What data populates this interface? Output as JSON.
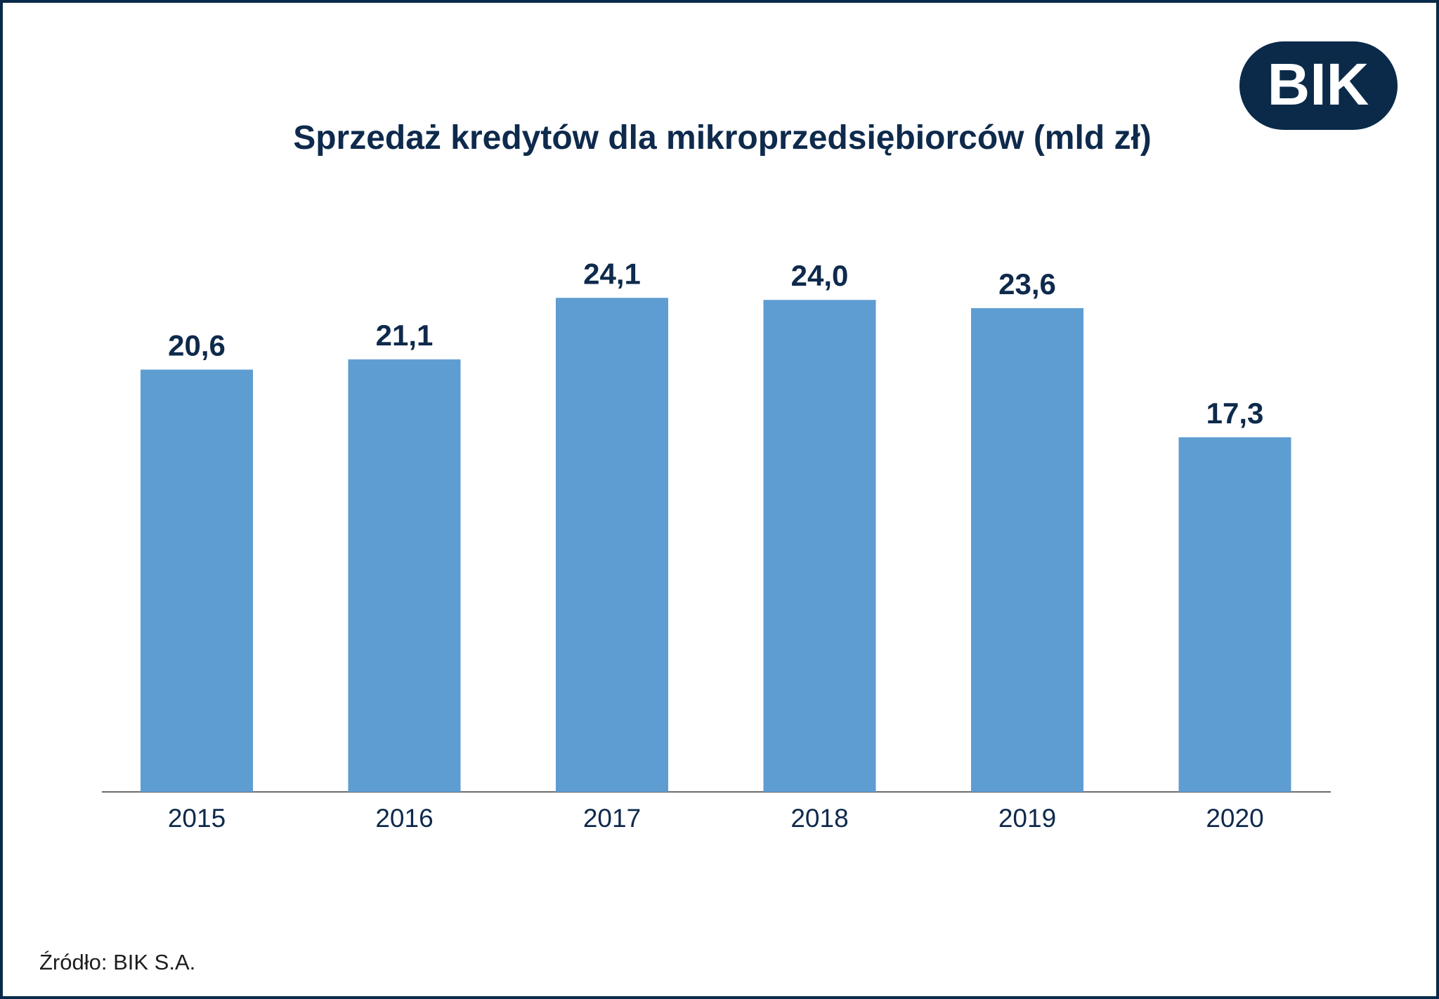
{
  "brand": {
    "logo_text": "BIK",
    "navy": "#0b2a4a",
    "bar_color": "#5e9dd2",
    "text_dark": "#0e2a4c"
  },
  "chart_data": {
    "type": "bar",
    "title": "Sprzedaż kredytów dla mikroprzedsiębiorców (mld zł)",
    "categories": [
      "2015",
      "2016",
      "2017",
      "2018",
      "2019",
      "2020"
    ],
    "values": [
      20.6,
      21.1,
      24.1,
      24.0,
      23.6,
      17.3
    ],
    "data_labels": [
      "20,6",
      "21,1",
      "24,1",
      "24,0",
      "23,6",
      "17,3"
    ],
    "xlabel": "",
    "ylabel": "",
    "ylim": [
      0,
      30
    ],
    "grid": false,
    "legend": "none"
  },
  "footer": {
    "source": "Źródło: BIK S.A."
  }
}
